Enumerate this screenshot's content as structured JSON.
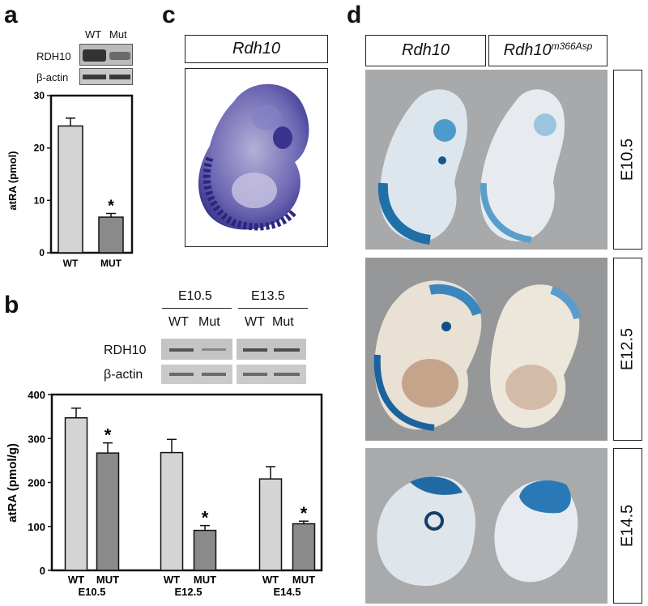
{
  "panels": {
    "a": "a",
    "b": "b",
    "c": "c",
    "d": "d"
  },
  "blot_a": {
    "lanes": [
      "WT",
      "Mut"
    ],
    "rows": [
      "RDH10",
      "β-actin"
    ]
  },
  "blot_b": {
    "stages": [
      "E10.5",
      "E13.5"
    ],
    "lanes": [
      "WT",
      "Mut",
      "WT",
      "Mut"
    ],
    "rows": [
      "RDH10",
      "β-actin"
    ]
  },
  "panel_c": {
    "label": "Rdh10"
  },
  "panel_d": {
    "label_left": "Rdh10",
    "label_right_base": "Rdh10",
    "label_right_sup": "m366Asp",
    "stages": [
      "E10.5",
      "E12.5",
      "E14.5"
    ]
  },
  "colors": {
    "wt_bar": "#d4d4d4",
    "mut_bar": "#8a8a8a",
    "insitu_purple": "#5a55a8",
    "lacz_blue": "#2f7fb3"
  },
  "chart_data": [
    {
      "type": "bar",
      "categories": [
        "WT",
        "MUT"
      ],
      "values": [
        24.2,
        6.8
      ],
      "errors": [
        1.5,
        0.7
      ],
      "significant": [
        false,
        true
      ],
      "annotation": "*",
      "ylabel": "atRA (pmol)",
      "ylim": [
        0,
        30
      ],
      "yticks": [
        0,
        10,
        20,
        30
      ]
    },
    {
      "type": "bar",
      "groups": [
        "E10.5",
        "E12.5",
        "E14.5"
      ],
      "bar_labels": [
        "WT",
        "MUT"
      ],
      "series": [
        {
          "name": "WT",
          "values": [
            347,
            268,
            208
          ],
          "errors": [
            22,
            30,
            28
          ]
        },
        {
          "name": "MUT",
          "values": [
            267,
            91,
            106
          ],
          "errors": [
            23,
            11,
            6
          ]
        }
      ],
      "significant_mut": [
        true,
        true,
        true
      ],
      "annotation": "*",
      "ylabel": "atRA (pmol/g)",
      "ylim": [
        0,
        400
      ],
      "yticks": [
        0,
        100,
        200,
        300,
        400
      ]
    }
  ]
}
